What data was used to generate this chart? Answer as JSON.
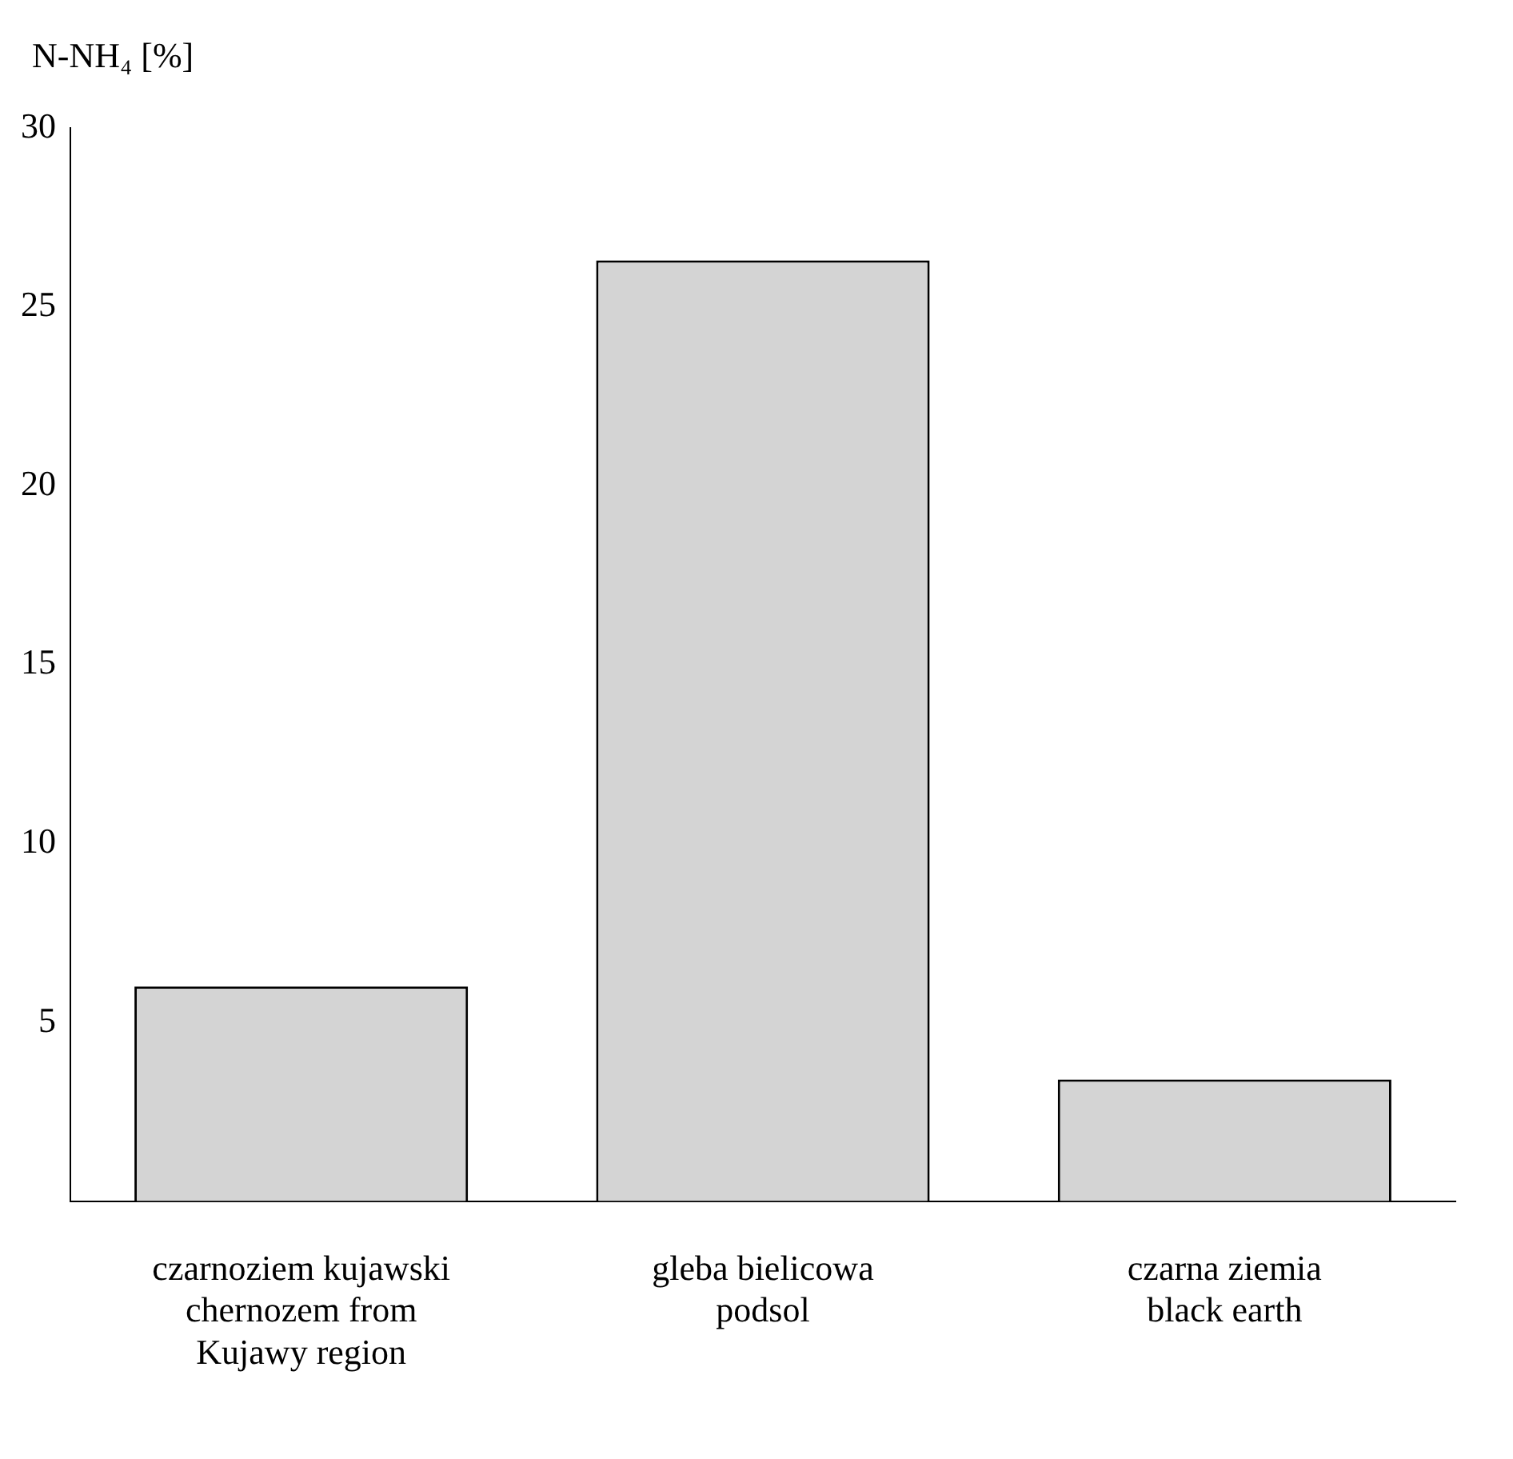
{
  "chart_data": {
    "type": "bar",
    "ylabel": "N-NH₄ [%]",
    "categories": [
      "czarnoziem kujawski\nchernozem from\nKujawy region",
      "gleba bielicowa\npodsol",
      "czarna ziemia\nblack earth"
    ],
    "values": [
      6.0,
      26.3,
      3.4
    ],
    "color": "#d4d4d4",
    "ylim": [
      0,
      30
    ],
    "yticks": [
      5,
      10,
      15,
      20,
      25,
      30
    ],
    "grid": false,
    "legend": false
  }
}
